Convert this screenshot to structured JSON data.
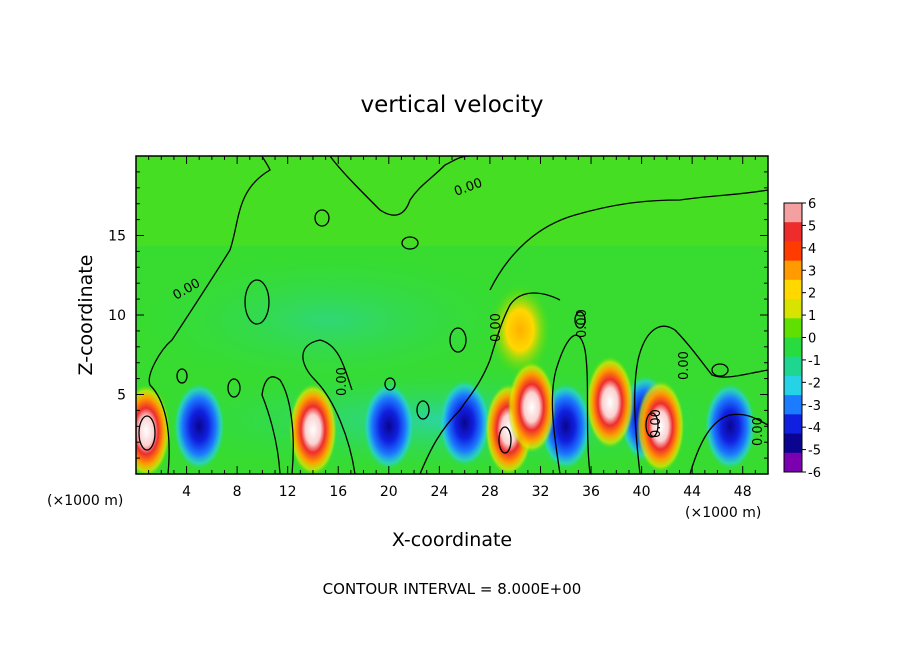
{
  "chart_data": {
    "type": "heatmap",
    "title": "vertical velocity",
    "xlabel": "X-coordinate",
    "ylabel": "Z-coordinate",
    "x_unit_left": "(×1000 m)",
    "x_unit_right": "(×1000 m)",
    "footer": "CONTOUR INTERVAL = 8.000E+00",
    "xlim": [
      0,
      50
    ],
    "ylim": [
      0,
      20
    ],
    "x_ticks": [
      4,
      8,
      12,
      16,
      20,
      24,
      28,
      32,
      36,
      40,
      44,
      48
    ],
    "y_ticks": [
      5,
      10,
      15
    ],
    "colorbar": {
      "levels": [
        6,
        5,
        4,
        3,
        2,
        1,
        0,
        -1,
        -2,
        -3,
        -4,
        -5,
        -6
      ],
      "colors": [
        "#f4a0a0",
        "#ee2c2c",
        "#ff3b00",
        "#ff9b00",
        "#ffd800",
        "#d8e400",
        "#60e000",
        "#28dc40",
        "#1ed690",
        "#26d2e6",
        "#1c7cff",
        "#1020e0",
        "#0a0490",
        "#7a00b0"
      ]
    },
    "contour_labels": [
      "0.00",
      "0.00",
      "0.00",
      "0.00",
      "0.00",
      "0.00",
      "0.00",
      "0.00"
    ],
    "updraft_cells": [
      {
        "x": 0.8,
        "z": 2.7,
        "max": 6
      },
      {
        "x": 14.0,
        "z": 2.8,
        "max": 5
      },
      {
        "x": 29.5,
        "z": 2.8,
        "max": 6
      },
      {
        "x": 31.3,
        "z": 4.2,
        "max": 6
      },
      {
        "x": 37.5,
        "z": 4.5,
        "max": 6
      },
      {
        "x": 41.5,
        "z": 3.0,
        "max": 6
      }
    ],
    "downdraft_cells": [
      {
        "x": 5.0,
        "z": 3.0,
        "min": -5
      },
      {
        "x": 20.0,
        "z": 3.0,
        "min": -6
      },
      {
        "x": 26.0,
        "z": 3.2,
        "min": -5
      },
      {
        "x": 34.0,
        "z": 3.0,
        "min": -5
      },
      {
        "x": 40.3,
        "z": 3.5,
        "min": -6
      },
      {
        "x": 47.0,
        "z": 3.0,
        "min": -5
      }
    ]
  }
}
